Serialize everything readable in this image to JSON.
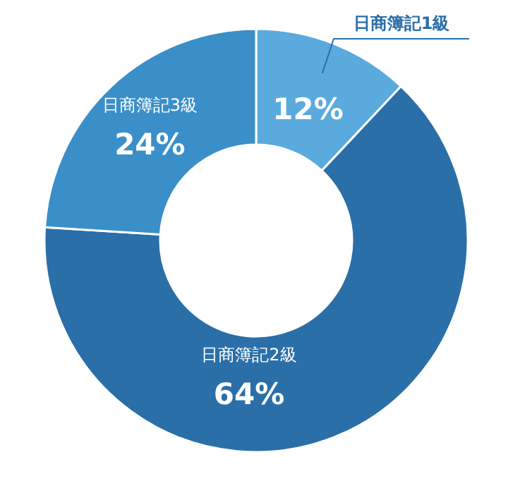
{
  "chart_data": {
    "type": "donut",
    "categories": [
      "日商簿記1級",
      "日商簿記2級",
      "日商簿記3級"
    ],
    "values": [
      12,
      64,
      24
    ],
    "colors": [
      "#5aaade",
      "#2a6fa8",
      "#3a8fc8"
    ],
    "value_labels": [
      "12%",
      "64%",
      "24%"
    ]
  }
}
